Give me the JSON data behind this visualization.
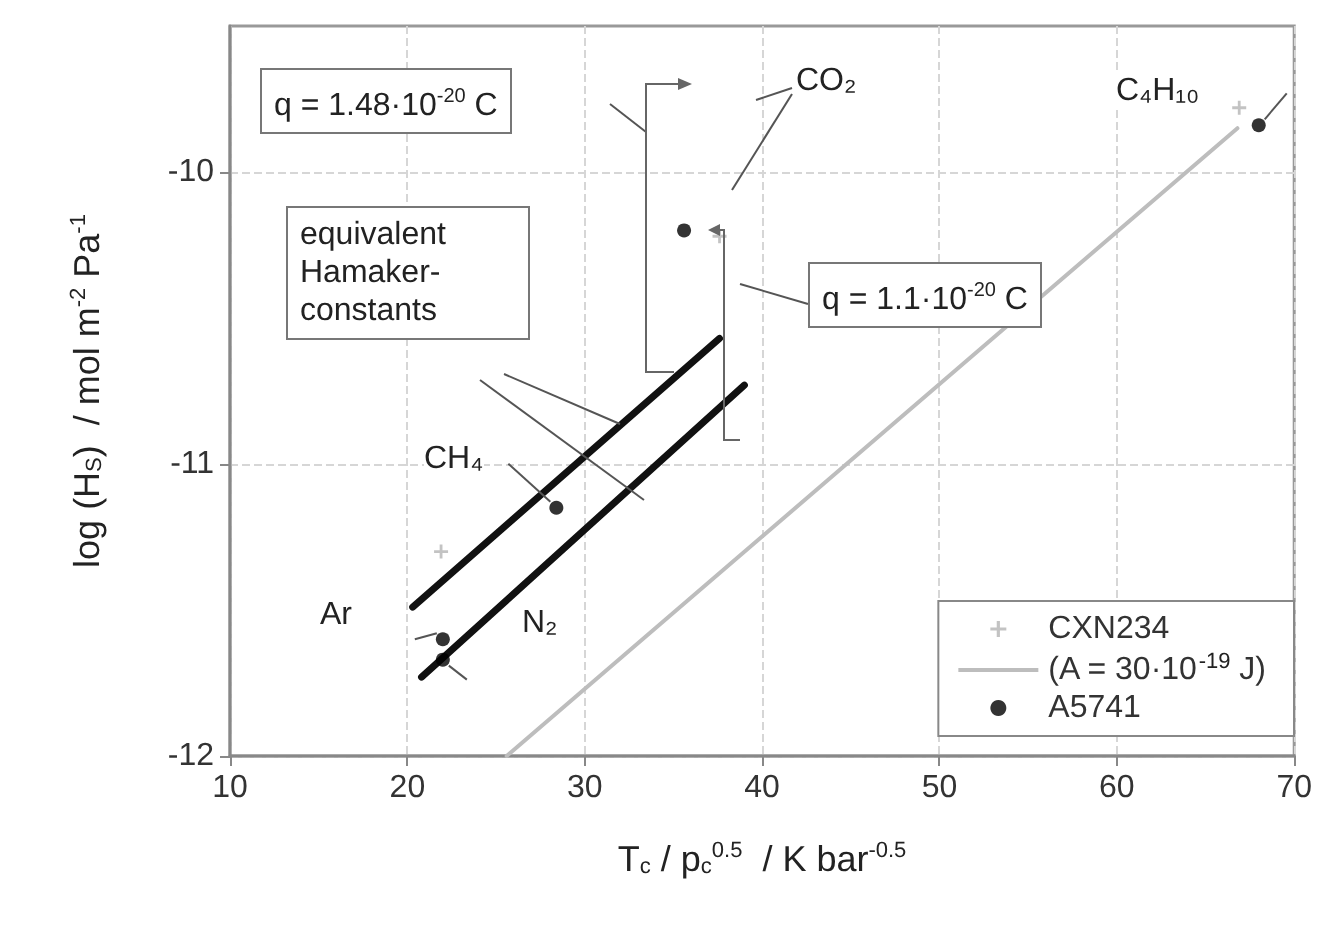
{
  "chart_data": {
    "type": "scatter",
    "xlabel": "T$_{c}$ / p$_{c}$$^{0.5}$  / K bar$^{-0.5}$",
    "ylabel": "log (H$_{S}$)  / mol m$^{-2}$ Pa$^{-1}$",
    "xlim": [
      10,
      70
    ],
    "xticks": [
      10,
      20,
      30,
      40,
      50,
      60,
      70
    ],
    "ylim": [
      -12,
      -9.5
    ],
    "yticks": [
      -12,
      -11,
      -10
    ],
    "grid": true,
    "legend": "bottom right",
    "series": [
      {
        "name": "CXN234",
        "marker": "cross",
        "color": "#b4b4b4",
        "x": [
          21.9,
          37.6,
          66.9
        ],
        "values": [
          -11.3,
          -10.22,
          -9.78
        ]
      },
      {
        "name": "(A = 30·10$^{-19}$ J)",
        "type": "line",
        "marker": "none",
        "color": "#bdbdbd",
        "x": [
          25.6,
          66.8
        ],
        "values": [
          -12,
          -9.85
        ]
      },
      {
        "name": "A5741",
        "marker": "circle",
        "color": "#000000",
        "x": [
          22,
          22,
          28.4,
          35.6,
          68
        ],
        "values": [
          -11.6,
          -11.67,
          -11.15,
          -10.2,
          -9.84
        ]
      },
      {
        "type": "line",
        "marker": "none",
        "color": "#111111",
        "x": [
          20.3,
          37.6
        ],
        "values": [
          -11.49,
          -10.57
        ]
      },
      {
        "type": "line",
        "marker": "none",
        "color": "#111111",
        "x": [
          20.8,
          39.0
        ],
        "values": [
          -11.73,
          -10.73
        ]
      }
    ],
    "annotations": [
      "q = 1.48·10$^{-20}$ C",
      "equivalent Hamaker-constants",
      "q = 1.1·10$^{-20}$ C",
      "CO₂",
      {
        "text": "CH₄",
        "x": 28.4,
        "y": -11.15
      },
      {
        "text": "Ar",
        "x": 22,
        "y": -11.6
      },
      {
        "text": "N₂",
        "x": 22,
        "y": -11.67
      },
      {
        "text": "C₄H₁₀",
        "x": 68,
        "y": -9.84
      }
    ]
  }
}
